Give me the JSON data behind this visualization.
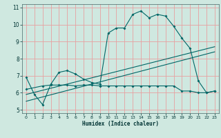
{
  "background_color": "#cfe8e0",
  "grid_color": "#e8a0a0",
  "line_color": "#006666",
  "xlabel": "Humidex (Indice chaleur)",
  "xlim": [
    -0.5,
    23.5
  ],
  "ylim": [
    4.8,
    11.2
  ],
  "yticks": [
    5,
    6,
    7,
    8,
    9,
    10,
    11
  ],
  "xticks": [
    0,
    1,
    2,
    3,
    4,
    5,
    6,
    7,
    8,
    9,
    10,
    11,
    12,
    13,
    14,
    15,
    16,
    17,
    18,
    19,
    20,
    21,
    22,
    23
  ],
  "series1_x": [
    0,
    1,
    2,
    3,
    4,
    5,
    6,
    7,
    8,
    9,
    10,
    11,
    12,
    13,
    14,
    15,
    16,
    17,
    18,
    19,
    20,
    21,
    22,
    23
  ],
  "series1_y": [
    6.9,
    5.9,
    5.3,
    6.5,
    7.2,
    7.3,
    7.1,
    6.8,
    6.6,
    6.5,
    9.5,
    9.8,
    9.8,
    10.6,
    10.8,
    10.4,
    10.6,
    10.5,
    9.9,
    9.2,
    8.6,
    6.7,
    6.0,
    6.1
  ],
  "series2_x": [
    0,
    2,
    3,
    4,
    5,
    6,
    7,
    8,
    9,
    10,
    11,
    12,
    13,
    14,
    15,
    16,
    17,
    18,
    19,
    20,
    21,
    22,
    23
  ],
  "series2_y": [
    6.2,
    6.4,
    6.45,
    6.45,
    6.45,
    6.4,
    6.45,
    6.45,
    6.4,
    6.4,
    6.4,
    6.4,
    6.4,
    6.4,
    6.4,
    6.4,
    6.4,
    6.4,
    6.1,
    6.1,
    6.0,
    6.0,
    6.1
  ],
  "series3_x": [
    0,
    23
  ],
  "series3_y": [
    5.5,
    8.4
  ],
  "series4_x": [
    0,
    23
  ],
  "series4_y": [
    5.9,
    8.7
  ]
}
